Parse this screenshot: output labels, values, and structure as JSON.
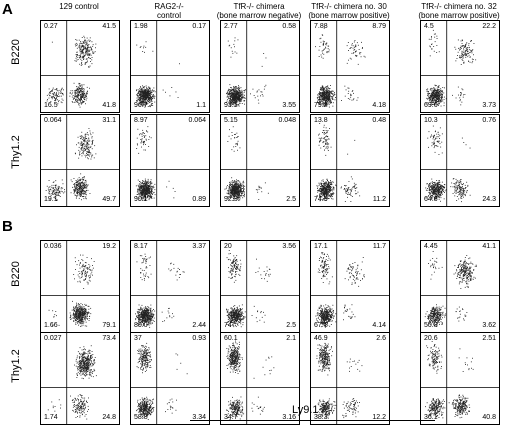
{
  "panel_letters": [
    "A",
    "B"
  ],
  "columns": [
    {
      "line1": "129 control",
      "line2": ""
    },
    {
      "line1": "RAG2-/-",
      "line2": "control"
    },
    {
      "line1": "TfR-/- chimera",
      "line2": "(bone marrow negative)"
    },
    {
      "line1": "TfR-/- chimera no. 30",
      "line2": "(bone marrow positive)"
    },
    {
      "line1": "TfR-/- chimera no. 32",
      "line2": "(bone marrow positive)"
    }
  ],
  "row_labels": [
    "B220",
    "Thy1.2",
    "B220",
    "Thy1.2"
  ],
  "x_axis_label": "Ly9.1",
  "quadrants": [
    [
      {
        "ul": "0.27",
        "ur": "41.5",
        "ll": "16.5",
        "lr": "41.8"
      },
      {
        "ul": "1.98",
        "ur": "0.17",
        "ll": "96.7",
        "lr": "1.1"
      },
      {
        "ul": "2.77",
        "ur": "0.58",
        "ll": "93.1",
        "lr": "3.55"
      },
      {
        "ul": "7.88",
        "ur": "8.79",
        "ll": "79.2",
        "lr": "4.18"
      },
      {
        "ul": "4.5",
        "ur": "22.2",
        "ll": "69.6",
        "lr": "3.73"
      }
    ],
    [
      {
        "ul": "0.064",
        "ur": "31.1",
        "ll": "19.1",
        "lr": "49.7"
      },
      {
        "ul": "8.97",
        "ur": "0.064",
        "ll": "90.1",
        "lr": "0.89"
      },
      {
        "ul": "5.15",
        "ur": "0.048",
        "ll": "92.3",
        "lr": "2.5"
      },
      {
        "ul": "13.8",
        "ur": "0.48",
        "ll": "74.5",
        "lr": "11.2"
      },
      {
        "ul": "10.3",
        "ur": "0.76",
        "ll": "64.6",
        "lr": "24.3"
      }
    ],
    [
      {
        "ul": "0.036",
        "ur": "19.2",
        "ll": "1.66",
        "lr": "79.1"
      },
      {
        "ul": "8.17",
        "ur": "3.37",
        "ll": "86.0",
        "lr": "2.44"
      },
      {
        "ul": "20",
        "ur": "3.56",
        "ll": "74",
        "lr": "2.5"
      },
      {
        "ul": "17.1",
        "ur": "11.7",
        "ll": "67.1",
        "lr": "4.14"
      },
      {
        "ul": "4.45",
        "ur": "41.1",
        "ll": "50.8",
        "lr": "3.62"
      }
    ],
    [
      {
        "ul": "0.027",
        "ur": "73.4",
        "ll": "1.74",
        "lr": "24.8"
      },
      {
        "ul": "37",
        "ur": "0.93",
        "ll": "58.8",
        "lr": "3.34"
      },
      {
        "ul": "60.1",
        "ur": "2.1",
        "ll": "34.7",
        "lr": "3.16"
      },
      {
        "ul": "46.9",
        "ur": "2.6",
        "ll": "38.3",
        "lr": "12.2"
      },
      {
        "ul": "20.6",
        "ur": "2.51",
        "ll": "36.1",
        "lr": "40.8"
      }
    ]
  ]
}
